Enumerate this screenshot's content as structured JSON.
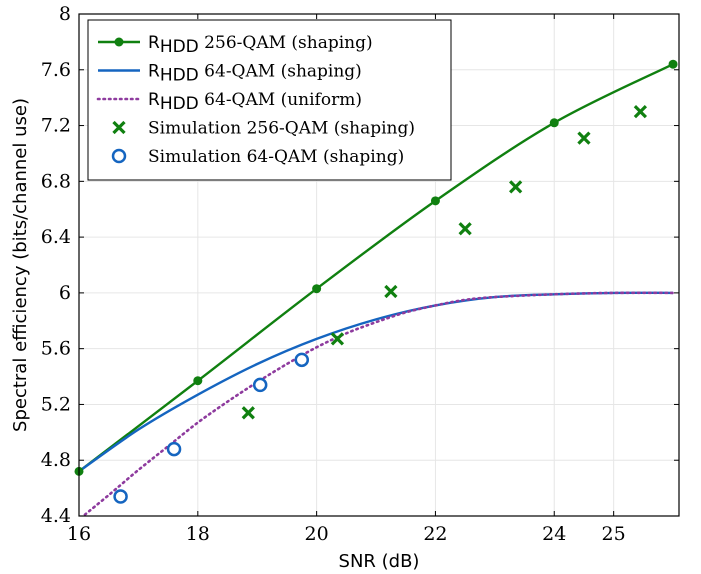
{
  "chart_data": {
    "type": "line",
    "xlabel": "SNR (dB)",
    "ylabel": "Spectral efficiency (bits/channel use)",
    "xlim": [
      16,
      26.1
    ],
    "ylim": [
      4.4,
      8.0
    ],
    "x_ticks": [
      16,
      18,
      20,
      22,
      24,
      25
    ],
    "x_tick_labels": [
      "16",
      "18",
      "20",
      "22",
      "24",
      "25"
    ],
    "y_ticks": [
      4.4,
      4.8,
      5.2,
      5.6,
      6.0,
      6.4,
      6.8,
      7.2,
      7.6,
      8.0
    ],
    "y_tick_labels": [
      "4.4",
      "4.8",
      "5.2",
      "5.6",
      "6",
      "6.4",
      "6.8",
      "7.2",
      "7.6",
      "8"
    ],
    "grid": true,
    "legend_position": "top-left",
    "series": [
      {
        "name": "R_HDD 256-QAM (shaping)",
        "legend_main": "R",
        "legend_sub": "HDD",
        "legend_rest": " 256-QAM (shaping)",
        "style": "line-dot",
        "color": "#108010",
        "x": [
          16,
          18,
          20,
          22,
          24,
          26
        ],
        "y": [
          4.72,
          5.37,
          6.03,
          6.66,
          7.22,
          7.64
        ],
        "markers": [
          [
            16,
            4.72
          ],
          [
            18,
            5.37
          ],
          [
            20,
            6.03
          ],
          [
            22,
            6.66
          ],
          [
            24,
            7.22
          ],
          [
            26,
            7.64
          ]
        ]
      },
      {
        "name": "R_HDD 64-QAM (shaping)",
        "legend_main": "R",
        "legend_sub": "HDD",
        "legend_rest": " 64-QAM (shaping)",
        "style": "line",
        "color": "#1565c0",
        "x": [
          16,
          17,
          18,
          19,
          20,
          21,
          22,
          23,
          24,
          25,
          26
        ],
        "y": [
          4.72,
          5.02,
          5.27,
          5.49,
          5.67,
          5.81,
          5.91,
          5.97,
          5.99,
          6.0,
          6.0
        ]
      },
      {
        "name": "R_HDD 64-QAM (uniform)",
        "legend_main": "R",
        "legend_sub": "HDD",
        "legend_rest": " 64-QAM (uniform)",
        "style": "dotted",
        "color": "#8e3b9e",
        "x": [
          16.1,
          16.5,
          17,
          17.5,
          18,
          18.5,
          19,
          19.5,
          20,
          20.5,
          21,
          21.5,
          22,
          22.5,
          23,
          24,
          25,
          26
        ],
        "y": [
          4.41,
          4.55,
          4.73,
          4.9,
          5.07,
          5.22,
          5.36,
          5.49,
          5.61,
          5.71,
          5.79,
          5.86,
          5.91,
          5.95,
          5.97,
          5.99,
          6.0,
          6.0
        ]
      },
      {
        "name": "Simulation 256-QAM (shaping)",
        "legend_main": "Simulation 256-QAM (shaping)",
        "style": "cross",
        "color": "#108010",
        "x": [
          18.85,
          20.35,
          21.25,
          22.5,
          23.35,
          24.5,
          25.45
        ],
        "y": [
          5.14,
          5.67,
          6.01,
          6.46,
          6.76,
          7.11,
          7.3
        ]
      },
      {
        "name": "Simulation 64-QAM (shaping)",
        "legend_main": "Simulation 64-QAM (shaping)",
        "style": "circle",
        "color": "#1565c0",
        "x": [
          16.7,
          17.6,
          19.05,
          19.75
        ],
        "y": [
          4.54,
          4.88,
          5.34,
          5.52
        ]
      }
    ]
  }
}
